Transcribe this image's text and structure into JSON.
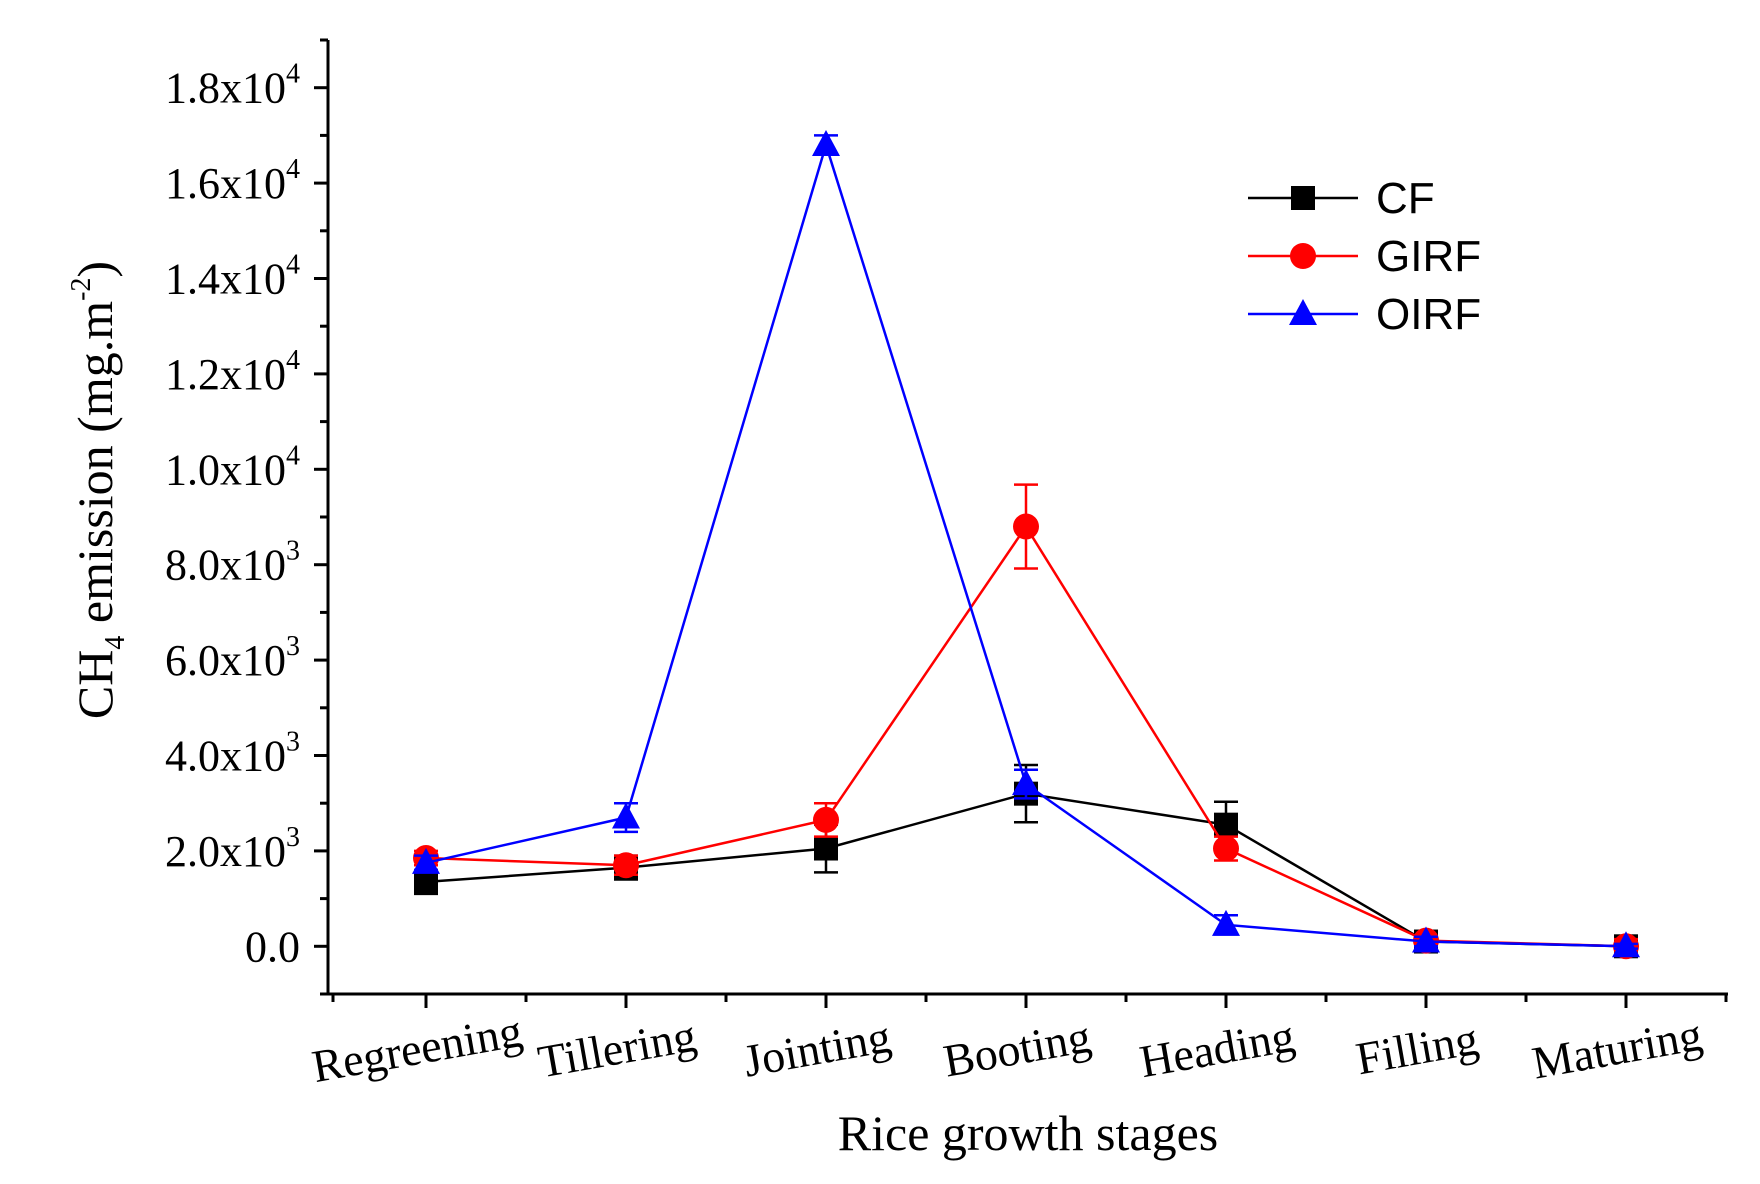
{
  "chart_data": {
    "type": "line",
    "title": "",
    "xlabel": "Rice growth stages",
    "ylabel": {
      "prefix": "CH",
      "subscript": "4",
      "middle": " emission (mg.m",
      "superscript": "-2",
      "suffix": ")"
    },
    "categories": [
      "Regreening",
      "Tillering",
      "Jointing",
      "Booting",
      "Heading",
      "Filling",
      "Maturing"
    ],
    "ylim": [
      -1000,
      19000
    ],
    "yticks": [
      {
        "value": 0,
        "base": "0.0",
        "exp": ""
      },
      {
        "value": 2000,
        "base": "2.0x10",
        "exp": "3"
      },
      {
        "value": 4000,
        "base": "4.0x10",
        "exp": "3"
      },
      {
        "value": 6000,
        "base": "6.0x10",
        "exp": "3"
      },
      {
        "value": 8000,
        "base": "8.0x10",
        "exp": "3"
      },
      {
        "value": 10000,
        "base": "1.0x10",
        "exp": "4"
      },
      {
        "value": 12000,
        "base": "1.2x10",
        "exp": "4"
      },
      {
        "value": 14000,
        "base": "1.4x10",
        "exp": "4"
      },
      {
        "value": 16000,
        "base": "1.6x10",
        "exp": "4"
      },
      {
        "value": 18000,
        "base": "1.8x10",
        "exp": "4"
      }
    ],
    "series": [
      {
        "name": "CF",
        "color": "#000000",
        "marker": "square",
        "values": [
          1350,
          1650,
          2050,
          3200,
          2550,
          100,
          0
        ],
        "errors": [
          250,
          250,
          500,
          600,
          480,
          60,
          40
        ]
      },
      {
        "name": "GIRF",
        "color": "#ff0000",
        "marker": "circle",
        "values": [
          1850,
          1700,
          2650,
          8800,
          2050,
          120,
          0
        ],
        "errors": [
          150,
          200,
          350,
          880,
          250,
          60,
          150
        ]
      },
      {
        "name": "OIRF",
        "color": "#0000ff",
        "marker": "triangle",
        "values": [
          1750,
          2700,
          16800,
          3400,
          450,
          100,
          0
        ],
        "errors": [
          150,
          300,
          200,
          300,
          200,
          100,
          50
        ]
      }
    ],
    "legend": "top-right"
  }
}
